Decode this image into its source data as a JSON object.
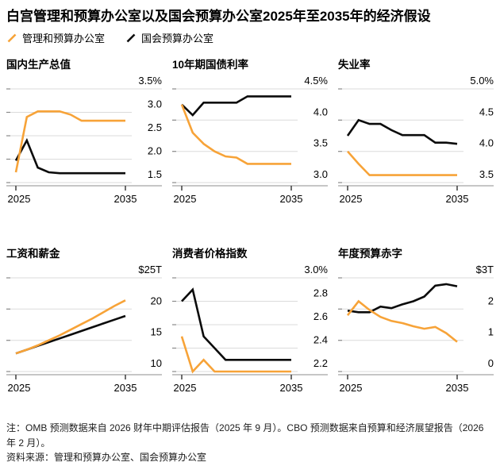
{
  "page": {
    "title": "白宫管理和预算办公室以及国会预算办公室2025年至2035年的经济假设",
    "note": "注：OMB 预测数据来自 2026 财年中期评估报告（2025 年 9 月）。CBO 预测数据来自预算和经济展望报告（2026 年 2 月）。",
    "source": "资料来源：管理和预算办公室、国会预算办公室"
  },
  "legend": [
    {
      "label": "管理和预算办公室",
      "color": "#F7A338"
    },
    {
      "label": "国会预算办公室",
      "color": "#0B0B0B"
    }
  ],
  "colors": {
    "omb": "#F7A338",
    "cbo": "#0B0B0B",
    "grid": "#DBDBDB",
    "axis": "#C6C6C6",
    "tick": "#3C3C3C",
    "left_tick": "#8A8A8A"
  },
  "x_labels": [
    "2025",
    "2035"
  ],
  "chart_data": [
    {
      "id": "gdp",
      "type": "line",
      "title": "国内生产总值",
      "x": [
        2025,
        2026,
        2027,
        2028,
        2029,
        2030,
        2031,
        2032,
        2033,
        2034,
        2035
      ],
      "ylim": [
        1.5,
        3.5
      ],
      "gridlines": [
        3.5,
        3.0,
        2.5,
        2.0,
        1.5
      ],
      "tick_labels": [
        "3.5%",
        "3.0",
        "2.5",
        "2.0",
        "1.5"
      ],
      "series": [
        {
          "name": "管理和预算办公室",
          "color_key": "omb",
          "values": [
            1.72,
            2.9,
            3.02,
            3.02,
            3.02,
            2.95,
            2.82,
            2.82,
            2.82,
            2.82,
            2.82
          ]
        },
        {
          "name": "国会预算办公室",
          "color_key": "cbo",
          "values": [
            1.97,
            2.4,
            1.82,
            1.72,
            1.7,
            1.7,
            1.7,
            1.7,
            1.7,
            1.7,
            1.7
          ]
        }
      ]
    },
    {
      "id": "treasury-10y",
      "type": "line",
      "title": "10年期国债利率",
      "x": [
        2025,
        2026,
        2027,
        2028,
        2029,
        2030,
        2031,
        2032,
        2033,
        2034,
        2035
      ],
      "ylim": [
        3.0,
        4.5
      ],
      "gridlines": [
        4.5,
        4.0,
        3.5,
        3.0
      ],
      "tick_labels": [
        "4.5%",
        "4.0",
        "3.5",
        "3.0"
      ],
      "series": [
        {
          "name": "管理和预算办公室",
          "color_key": "omb",
          "values": [
            4.25,
            3.8,
            3.62,
            3.5,
            3.42,
            3.4,
            3.3,
            3.3,
            3.3,
            3.3,
            3.3
          ]
        },
        {
          "name": "国会预算办公室",
          "color_key": "cbo",
          "values": [
            4.25,
            4.08,
            4.28,
            4.28,
            4.28,
            4.28,
            4.38,
            4.38,
            4.38,
            4.38,
            4.38
          ]
        }
      ]
    },
    {
      "id": "unemployment",
      "type": "line",
      "title": "失业率",
      "x": [
        2025,
        2026,
        2027,
        2028,
        2029,
        2030,
        2031,
        2032,
        2033,
        2034,
        2035
      ],
      "ylim": [
        3.5,
        5.0
      ],
      "gridlines": [
        5.0,
        4.5,
        4.0,
        3.5
      ],
      "tick_labels": [
        "5.0%",
        "4.5",
        "4.0",
        "3.5"
      ],
      "series": [
        {
          "name": "管理和预算办公室",
          "color_key": "omb",
          "values": [
            4.0,
            3.8,
            3.62,
            3.62,
            3.62,
            3.62,
            3.62,
            3.62,
            3.62,
            3.62,
            3.62
          ]
        },
        {
          "name": "国会预算办公室",
          "color_key": "cbo",
          "values": [
            4.25,
            4.5,
            4.44,
            4.44,
            4.34,
            4.26,
            4.26,
            4.26,
            4.14,
            4.14,
            4.12
          ]
        }
      ]
    },
    {
      "id": "wages",
      "type": "line",
      "title": "工资和薪金",
      "x": [
        2025,
        2026,
        2027,
        2028,
        2029,
        2030,
        2031,
        2032,
        2033,
        2034,
        2035
      ],
      "ylim": [
        10,
        25
      ],
      "unit": "$T",
      "gridlines": [
        25,
        20,
        15,
        10
      ],
      "tick_labels": [
        "$25T",
        "20",
        "15",
        "10"
      ],
      "series": [
        {
          "name": "管理和预算办公室",
          "color_key": "omb",
          "values": [
            12.9,
            13.5,
            14.2,
            15.0,
            15.8,
            16.7,
            17.6,
            18.5,
            19.5,
            20.5,
            21.4
          ]
        },
        {
          "name": "国会预算办公室",
          "color_key": "cbo",
          "values": [
            12.9,
            13.5,
            14.1,
            14.7,
            15.3,
            15.9,
            16.5,
            17.1,
            17.7,
            18.3,
            18.9
          ]
        }
      ]
    },
    {
      "id": "cpi",
      "type": "line",
      "title": "消费者价格指数",
      "x": [
        2025,
        2026,
        2027,
        2028,
        2029,
        2030,
        2031,
        2032,
        2033,
        2034,
        2035
      ],
      "ylim": [
        2.2,
        3.0
      ],
      "gridlines": [
        3.0,
        2.8,
        2.6,
        2.4,
        2.2
      ],
      "tick_labels": [
        "3.0%",
        "2.8",
        "2.6",
        "2.4",
        "2.2"
      ],
      "series": [
        {
          "name": "管理和预算办公室",
          "color_key": "omb",
          "values": [
            2.5,
            2.2,
            2.3,
            2.2,
            2.2,
            2.2,
            2.2,
            2.2,
            2.2,
            2.2,
            2.2
          ]
        },
        {
          "name": "国会预算办公室",
          "color_key": "cbo",
          "values": [
            2.8,
            2.9,
            2.5,
            2.4,
            2.3,
            2.3,
            2.3,
            2.3,
            2.3,
            2.3,
            2.3
          ]
        }
      ]
    },
    {
      "id": "deficit",
      "type": "line",
      "title": "年度预算赤字",
      "x": [
        2025,
        2026,
        2027,
        2028,
        2029,
        2030,
        2031,
        2032,
        2033,
        2034,
        2035
      ],
      "ylim": [
        0,
        3
      ],
      "unit": "$T",
      "gridlines": [
        3,
        2,
        1,
        0
      ],
      "tick_labels": [
        "$3T",
        "2",
        "1",
        "0"
      ],
      "series": [
        {
          "name": "管理和预算办公室",
          "color_key": "omb",
          "values": [
            1.8,
            2.25,
            1.97,
            1.75,
            1.62,
            1.55,
            1.45,
            1.37,
            1.43,
            1.23,
            0.95
          ]
        },
        {
          "name": "国会预算办公室",
          "color_key": "cbo",
          "values": [
            1.95,
            1.9,
            1.9,
            2.08,
            2.03,
            2.15,
            2.25,
            2.4,
            2.75,
            2.8,
            2.73
          ]
        }
      ]
    }
  ]
}
